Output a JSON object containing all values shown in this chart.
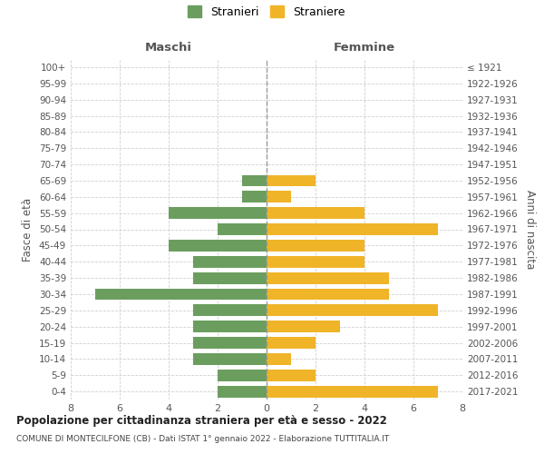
{
  "age_groups": [
    "100+",
    "95-99",
    "90-94",
    "85-89",
    "80-84",
    "75-79",
    "70-74",
    "65-69",
    "60-64",
    "55-59",
    "50-54",
    "45-49",
    "40-44",
    "35-39",
    "30-34",
    "25-29",
    "20-24",
    "15-19",
    "10-14",
    "5-9",
    "0-4"
  ],
  "birth_years": [
    "≤ 1921",
    "1922-1926",
    "1927-1931",
    "1932-1936",
    "1937-1941",
    "1942-1946",
    "1947-1951",
    "1952-1956",
    "1957-1961",
    "1962-1966",
    "1967-1971",
    "1972-1976",
    "1977-1981",
    "1982-1986",
    "1987-1991",
    "1992-1996",
    "1997-2001",
    "2002-2006",
    "2007-2011",
    "2012-2016",
    "2017-2021"
  ],
  "stranieri": [
    0,
    0,
    0,
    0,
    0,
    0,
    0,
    1,
    1,
    4,
    2,
    4,
    3,
    3,
    7,
    3,
    3,
    3,
    3,
    2,
    2
  ],
  "straniere": [
    0,
    0,
    0,
    0,
    0,
    0,
    0,
    2,
    1,
    4,
    7,
    4,
    4,
    5,
    5,
    7,
    3,
    2,
    1,
    2,
    7
  ],
  "color_stranieri": "#6b9e5e",
  "color_straniere": "#f0b429",
  "title": "Popolazione per cittadinanza straniera per età e sesso - 2022",
  "subtitle": "COMUNE DI MONTECILFONE (CB) - Dati ISTAT 1° gennaio 2022 - Elaborazione TUTTITALIA.IT",
  "label_maschi": "Maschi",
  "label_femmine": "Femmine",
  "ylabel_left": "Fasce di età",
  "ylabel_right": "Anni di nascita",
  "xlim": 8,
  "background_color": "#ffffff",
  "grid_color": "#d0d0d0"
}
